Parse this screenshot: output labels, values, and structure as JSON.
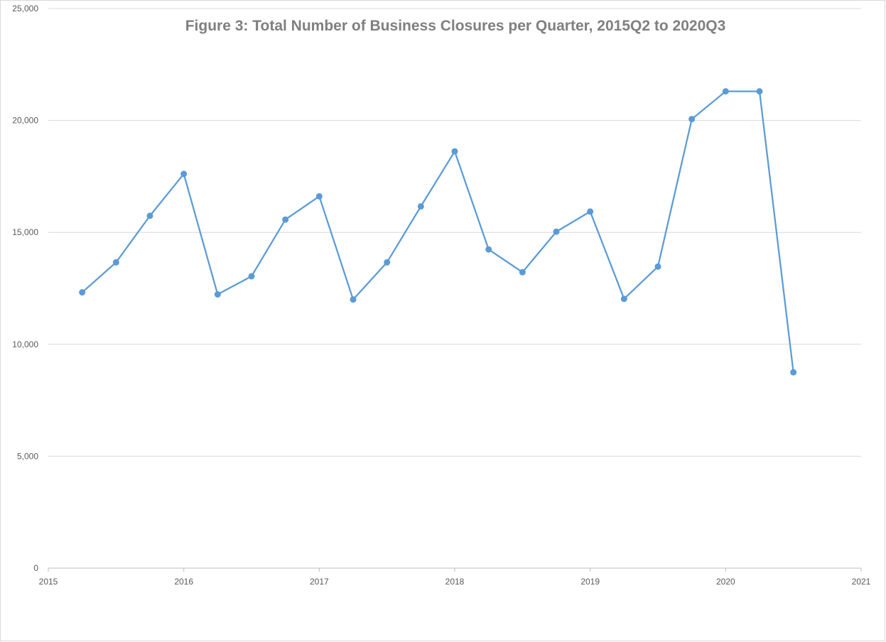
{
  "chart_data": {
    "type": "scatter",
    "title": "Figure 3: Total Number of Business Closures per Quarter, 2015Q2 to 2020Q3",
    "xlabel": "",
    "ylabel": "",
    "xlim": [
      2015,
      2021
    ],
    "ylim": [
      0,
      25000
    ],
    "x_ticks": [
      2015,
      2016,
      2017,
      2018,
      2019,
      2020,
      2021
    ],
    "x_tick_labels": [
      "2015",
      "2016",
      "2017",
      "2018",
      "2019",
      "2020",
      "2021"
    ],
    "y_ticks": [
      0,
      5000,
      10000,
      15000,
      20000,
      25000
    ],
    "y_tick_labels": [
      "0",
      "5,000",
      "10,000",
      "15,000",
      "20,000",
      "25,000"
    ],
    "grid": true,
    "legend": "none",
    "series": [
      {
        "color": "#5b9bd5",
        "lines": true,
        "markers": true,
        "points": [
          {
            "x": 2015.25,
            "y": 12320
          },
          {
            "x": 2015.5,
            "y": 13660
          },
          {
            "x": 2015.75,
            "y": 15740
          },
          {
            "x": 2016.0,
            "y": 17610
          },
          {
            "x": 2016.25,
            "y": 12230
          },
          {
            "x": 2016.5,
            "y": 13040
          },
          {
            "x": 2016.75,
            "y": 15570
          },
          {
            "x": 2017.0,
            "y": 16610
          },
          {
            "x": 2017.25,
            "y": 12000
          },
          {
            "x": 2017.5,
            "y": 13660
          },
          {
            "x": 2017.75,
            "y": 16160
          },
          {
            "x": 2018.0,
            "y": 18620
          },
          {
            "x": 2018.25,
            "y": 14240
          },
          {
            "x": 2018.5,
            "y": 13220
          },
          {
            "x": 2018.75,
            "y": 15030
          },
          {
            "x": 2019.0,
            "y": 15930
          },
          {
            "x": 2019.25,
            "y": 12030
          },
          {
            "x": 2019.5,
            "y": 13470
          },
          {
            "x": 2019.75,
            "y": 20060
          },
          {
            "x": 2020.0,
            "y": 21300
          },
          {
            "x": 2020.25,
            "y": 21300
          },
          {
            "x": 2020.5,
            "y": 8750
          }
        ]
      }
    ],
    "colors": {
      "grid": "#d9d9d9",
      "axis": "#bfbfbf",
      "tick_text": "#595959",
      "title": "#7f7f7f"
    }
  }
}
